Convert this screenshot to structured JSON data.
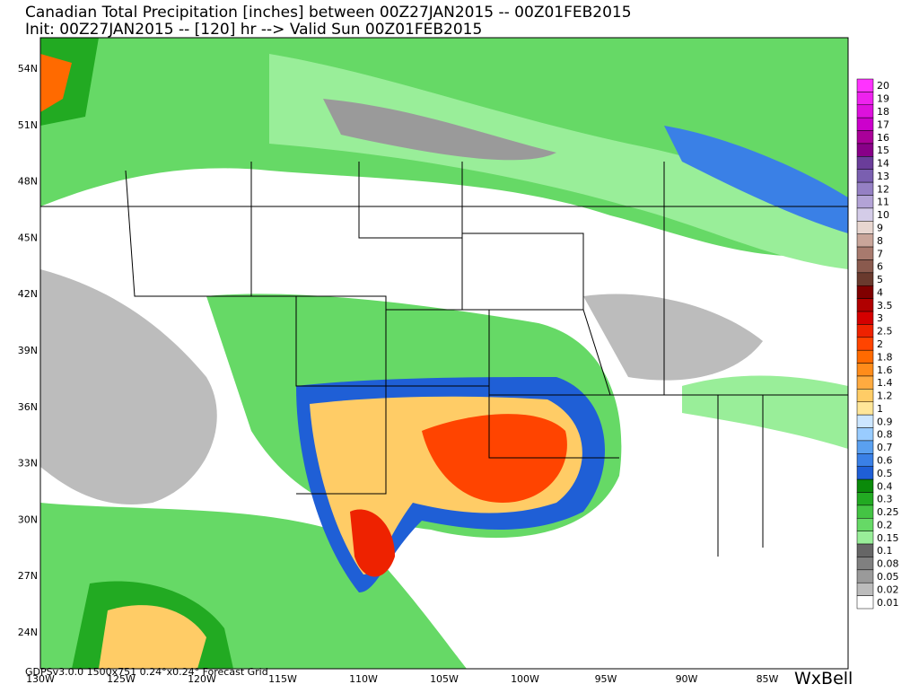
{
  "header": {
    "title": "Canadian Total Precipitation [inches] between 00Z27JAN2015 -- 00Z01FEB2015",
    "subtitle": "Init: 00Z27JAN2015 -- [120] hr --> Valid Sun 00Z01FEB2015"
  },
  "map": {
    "lat_labels": [
      "54N",
      "51N",
      "48N",
      "45N",
      "42N",
      "39N",
      "36N",
      "33N",
      "30N",
      "27N",
      "24N"
    ],
    "lon_labels": [
      "130W",
      "125W",
      "120W",
      "115W",
      "110W",
      "105W",
      "100W",
      "95W",
      "90W",
      "85W"
    ]
  },
  "legend": {
    "items": [
      {
        "label": "20",
        "color": "#ff33ff"
      },
      {
        "label": "19",
        "color": "#ee22ee"
      },
      {
        "label": "18",
        "color": "#dd11dd"
      },
      {
        "label": "17",
        "color": "#cc00cc"
      },
      {
        "label": "16",
        "color": "#aa0099"
      },
      {
        "label": "15",
        "color": "#880088"
      },
      {
        "label": "14",
        "color": "#6a3d9a"
      },
      {
        "label": "13",
        "color": "#7a5fb0"
      },
      {
        "label": "12",
        "color": "#9580c4"
      },
      {
        "label": "11",
        "color": "#b3a3d6"
      },
      {
        "label": "10",
        "color": "#d4cce8"
      },
      {
        "label": "9",
        "color": "#e8d6d0"
      },
      {
        "label": "8",
        "color": "#c9a59a"
      },
      {
        "label": "7",
        "color": "#a87a6e"
      },
      {
        "label": "6",
        "color": "#8a5a4e"
      },
      {
        "label": "5",
        "color": "#6a3a2e"
      },
      {
        "label": "4",
        "color": "#800000"
      },
      {
        "label": "3.5",
        "color": "#b00000"
      },
      {
        "label": "3",
        "color": "#d40000"
      },
      {
        "label": "2.5",
        "color": "#ee2200"
      },
      {
        "label": "2",
        "color": "#ff4400"
      },
      {
        "label": "1.8",
        "color": "#ff6a00"
      },
      {
        "label": "1.6",
        "color": "#ff8c1a"
      },
      {
        "label": "1.4",
        "color": "#ffab40"
      },
      {
        "label": "1.2",
        "color": "#ffcc66"
      },
      {
        "label": "1",
        "color": "#ffe699"
      },
      {
        "label": "0.9",
        "color": "#cce6ff"
      },
      {
        "label": "0.8",
        "color": "#99ccff"
      },
      {
        "label": "0.7",
        "color": "#5aa0f0"
      },
      {
        "label": "0.6",
        "color": "#3a80e6"
      },
      {
        "label": "0.5",
        "color": "#1f5fd6"
      },
      {
        "label": "0.4",
        "color": "#0a8a0a"
      },
      {
        "label": "0.3",
        "color": "#22aa22"
      },
      {
        "label": "0.25",
        "color": "#44c444"
      },
      {
        "label": "0.2",
        "color": "#66d966"
      },
      {
        "label": "0.15",
        "color": "#99ee99"
      },
      {
        "label": "0.1",
        "color": "#666666"
      },
      {
        "label": "0.08",
        "color": "#808080"
      },
      {
        "label": "0.05",
        "color": "#9a9a9a"
      },
      {
        "label": "0.02",
        "color": "#bcbcbc"
      },
      {
        "label": "0.01",
        "color": "#ffffff"
      }
    ]
  },
  "footer": {
    "grid_info": "GDPSv3.0.0 1500x751 0.24°x0.24° Forecast Grid",
    "logo": "WxBell"
  }
}
